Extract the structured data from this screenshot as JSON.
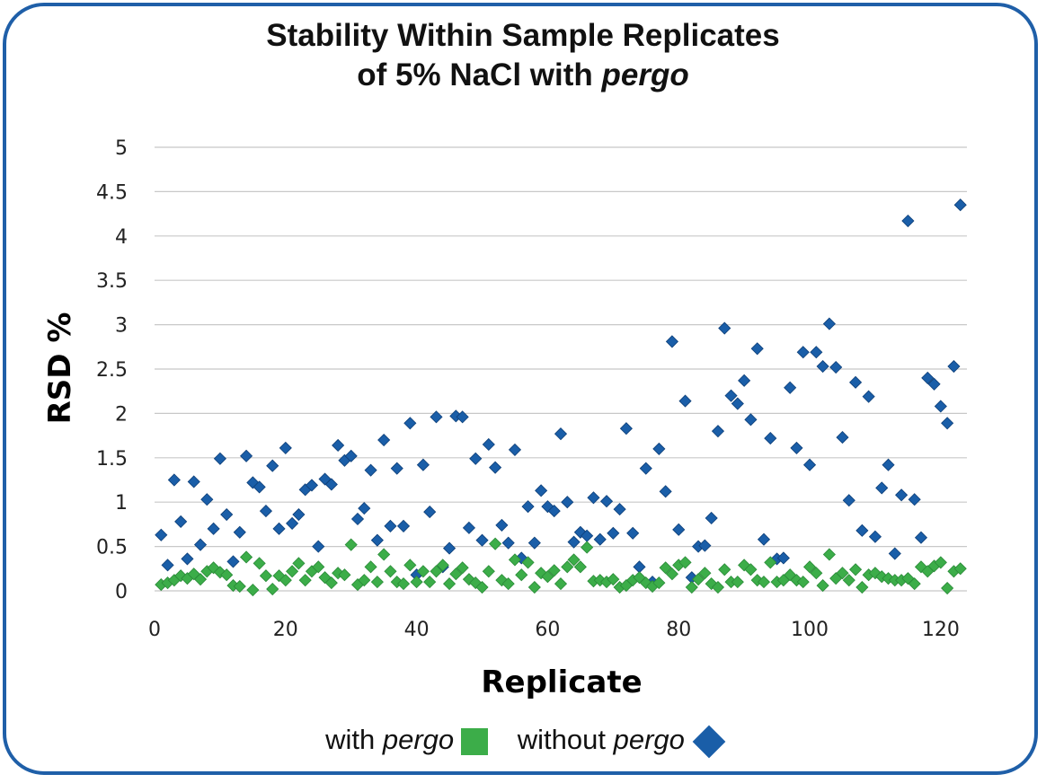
{
  "colors": {
    "frame": "#1f5fa8",
    "with": "#3cad49",
    "without": "#1a5ea8"
  },
  "chart_data": {
    "type": "scatter",
    "title_line1": "Stability Within Sample Replicates",
    "title_line2_prefix": "of 5% NaCl with ",
    "title_line2_italic": "pergo",
    "xlabel": "Replicate",
    "ylabel": "RSD %",
    "xlim": [
      0,
      124
    ],
    "ylim": [
      0,
      5
    ],
    "xticks": [
      "0",
      "20",
      "40",
      "60",
      "80",
      "100",
      "120"
    ],
    "yticks": [
      "0",
      "0.5",
      "1",
      "1.5",
      "2",
      "2.5",
      "3",
      "3.5",
      "4",
      "4.5",
      "5"
    ],
    "legend": {
      "with_prefix": "with ",
      "with_italic": "pergo",
      "without_prefix": "without ",
      "without_italic": "pergo"
    },
    "series": [
      {
        "name": "with pergo",
        "marker": "diamond",
        "x": [
          1,
          2,
          3,
          4,
          5,
          6,
          7,
          8,
          9,
          10,
          11,
          12,
          13,
          14,
          15,
          16,
          17,
          18,
          19,
          20,
          21,
          22,
          23,
          24,
          25,
          26,
          27,
          28,
          29,
          30,
          31,
          32,
          33,
          34,
          35,
          36,
          37,
          38,
          39,
          40,
          41,
          42,
          43,
          44,
          45,
          46,
          47,
          48,
          49,
          50,
          51,
          52,
          53,
          54,
          55,
          56,
          57,
          58,
          59,
          60,
          61,
          62,
          63,
          64,
          65,
          66,
          67,
          68,
          69,
          70,
          71,
          72,
          73,
          74,
          75,
          76,
          77,
          78,
          79,
          80,
          81,
          82,
          83,
          84,
          85,
          86,
          87,
          88,
          89,
          90,
          91,
          92,
          93,
          94,
          95,
          96,
          97,
          98,
          99,
          100,
          101,
          102,
          103,
          104,
          105,
          106,
          107,
          108,
          109,
          110,
          111,
          112,
          113,
          114,
          115,
          116,
          117,
          118,
          119,
          120,
          121,
          122,
          123
        ],
        "values": [
          0.07,
          0.09,
          0.12,
          0.17,
          0.14,
          0.19,
          0.13,
          0.22,
          0.26,
          0.21,
          0.18,
          0.06,
          0.05,
          0.38,
          0.01,
          0.31,
          0.17,
          0.02,
          0.17,
          0.12,
          0.22,
          0.31,
          0.12,
          0.22,
          0.27,
          0.15,
          0.09,
          0.2,
          0.18,
          0.52,
          0.07,
          0.12,
          0.27,
          0.1,
          0.41,
          0.22,
          0.1,
          0.08,
          0.29,
          0.1,
          0.22,
          0.1,
          0.22,
          0.29,
          0.08,
          0.19,
          0.26,
          0.13,
          0.09,
          0.04,
          0.22,
          0.53,
          0.12,
          0.08,
          0.35,
          0.18,
          0.32,
          0.04,
          0.2,
          0.16,
          0.23,
          0.08,
          0.27,
          0.35,
          0.27,
          0.49,
          0.11,
          0.12,
          0.1,
          0.13,
          0.04,
          0.06,
          0.12,
          0.15,
          0.09,
          0.05,
          0.09,
          0.26,
          0.19,
          0.29,
          0.32,
          0.04,
          0.13,
          0.2,
          0.08,
          0.04,
          0.24,
          0.1,
          0.1,
          0.29,
          0.24,
          0.12,
          0.1,
          0.32,
          0.1,
          0.12,
          0.18,
          0.12,
          0.1,
          0.27,
          0.2,
          0.06,
          0.41,
          0.14,
          0.2,
          0.12,
          0.24,
          0.04,
          0.18,
          0.2,
          0.16,
          0.14,
          0.12,
          0.12,
          0.14,
          0.08,
          0.27,
          0.22,
          0.28,
          0.32,
          0.03,
          0.22,
          0.25
        ]
      },
      {
        "name": "without pergo",
        "marker": "diamond",
        "x": [
          1,
          2,
          3,
          4,
          5,
          6,
          7,
          8,
          9,
          10,
          11,
          12,
          13,
          14,
          15,
          16,
          17,
          18,
          19,
          20,
          21,
          22,
          23,
          24,
          25,
          26,
          27,
          28,
          29,
          30,
          31,
          32,
          33,
          34,
          35,
          36,
          37,
          38,
          39,
          40,
          41,
          42,
          43,
          44,
          45,
          46,
          47,
          48,
          49,
          50,
          51,
          52,
          53,
          54,
          55,
          56,
          57,
          58,
          59,
          60,
          61,
          62,
          63,
          64,
          65,
          66,
          67,
          68,
          69,
          70,
          71,
          72,
          73,
          74,
          75,
          76,
          77,
          78,
          79,
          80,
          81,
          82,
          83,
          84,
          85,
          86,
          87,
          88,
          89,
          90,
          91,
          92,
          93,
          94,
          95,
          96,
          97,
          98,
          99,
          100,
          101,
          102,
          103,
          104,
          105,
          106,
          107,
          108,
          109,
          110,
          111,
          112,
          113,
          114,
          115,
          116,
          117,
          118,
          119,
          120,
          121,
          122,
          123
        ],
        "values": [
          0.63,
          0.29,
          1.25,
          0.78,
          0.36,
          1.23,
          0.52,
          1.03,
          0.7,
          1.49,
          0.86,
          0.33,
          0.66,
          1.52,
          1.22,
          1.17,
          0.9,
          1.41,
          0.7,
          1.61,
          0.76,
          0.86,
          1.14,
          1.19,
          0.5,
          1.26,
          1.2,
          1.64,
          1.47,
          1.52,
          0.81,
          0.93,
          1.36,
          0.57,
          1.7,
          0.73,
          1.38,
          0.73,
          1.89,
          0.18,
          1.42,
          0.89,
          1.96,
          0.27,
          0.48,
          1.97,
          1.96,
          0.71,
          1.49,
          0.57,
          1.65,
          1.39,
          0.74,
          0.54,
          1.59,
          0.37,
          0.95,
          0.54,
          1.13,
          0.95,
          0.9,
          1.77,
          1.0,
          0.55,
          0.66,
          0.62,
          1.05,
          0.58,
          1.01,
          0.65,
          0.92,
          1.83,
          0.65,
          0.27,
          1.38,
          0.1,
          1.6,
          1.12,
          2.81,
          0.69,
          2.14,
          0.15,
          0.5,
          0.51,
          0.82,
          1.8,
          2.96,
          2.2,
          2.11,
          2.37,
          1.93,
          2.73,
          0.58,
          1.72,
          0.36,
          0.37,
          2.29,
          1.61,
          2.69,
          1.42,
          2.69,
          2.53,
          3.01,
          2.52,
          1.73,
          1.02,
          2.35,
          0.68,
          2.19,
          0.61,
          1.16,
          1.42,
          0.42,
          1.08,
          4.17,
          1.03,
          0.6,
          2.4,
          2.33,
          2.08,
          1.89,
          2.53,
          4.35
        ]
      }
    ]
  }
}
